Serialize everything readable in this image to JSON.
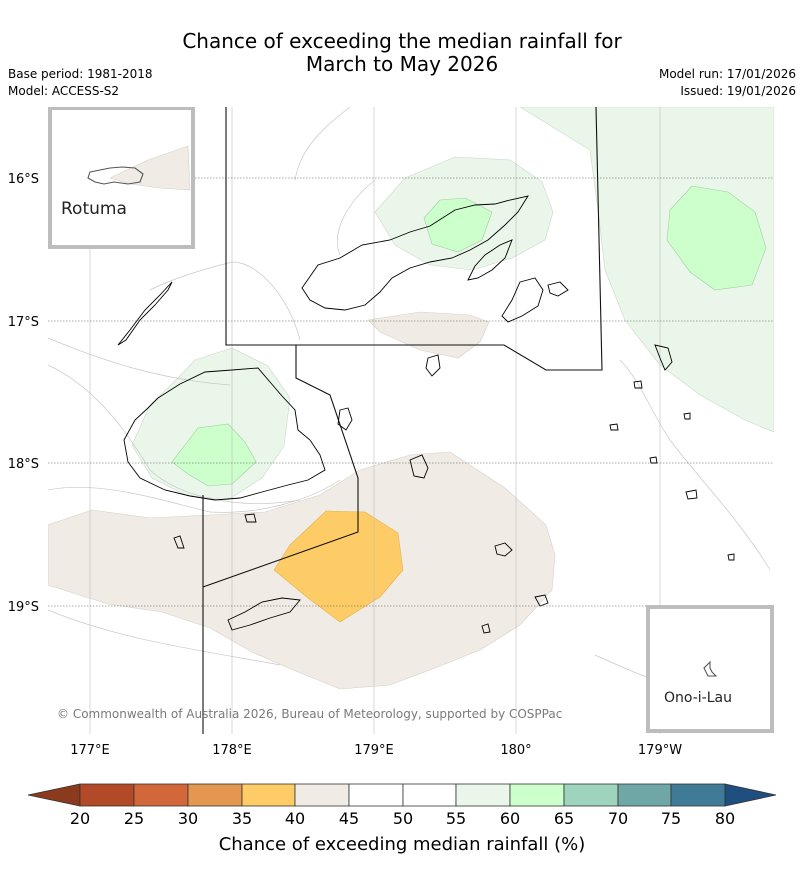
{
  "title_line1": "Chance of exceeding the median rainfall for",
  "title_line2": "March to May 2026",
  "base_period": "Base period: 1981-2018",
  "model": "Model: ACCESS-S2",
  "model_run": "Model run: 17/01/2026",
  "issued": "Issued: 19/01/2026",
  "map": {
    "lon_labels": [
      "177°E",
      "178°E",
      "179°E",
      "180°",
      "179°W"
    ],
    "lat_labels": [
      "16°S",
      "17°S",
      "18°S",
      "19°S"
    ],
    "credit": "© Commonwealth of Australia 2026, Bureau of Meteorology, supported by COSPPac",
    "insets": [
      {
        "label": "Rotuma"
      },
      {
        "label": "Ono-i-Lau"
      }
    ]
  },
  "colorbar": {
    "title": "Chance of exceeding median rainfall (%)",
    "ticks": [
      "20",
      "25",
      "30",
      "35",
      "40",
      "45",
      "50",
      "55",
      "60",
      "65",
      "70",
      "75",
      "80"
    ],
    "colors": {
      "below_20": "#8c3a1e",
      "20_25": "#b24a27",
      "25_30": "#d2683a",
      "30_35": "#e3974f",
      "35_40": "#fecc66",
      "40_45": "#f0ece5",
      "45_50": "#ffffff",
      "50_55": "#ffffff",
      "55_60": "#eaf6ea",
      "60_65": "#ccffcc",
      "65_70": "#9ed3bd",
      "70_75": "#6fa7a6",
      "75_80": "#3f7a96",
      "above_80": "#1f4f7e"
    }
  }
}
